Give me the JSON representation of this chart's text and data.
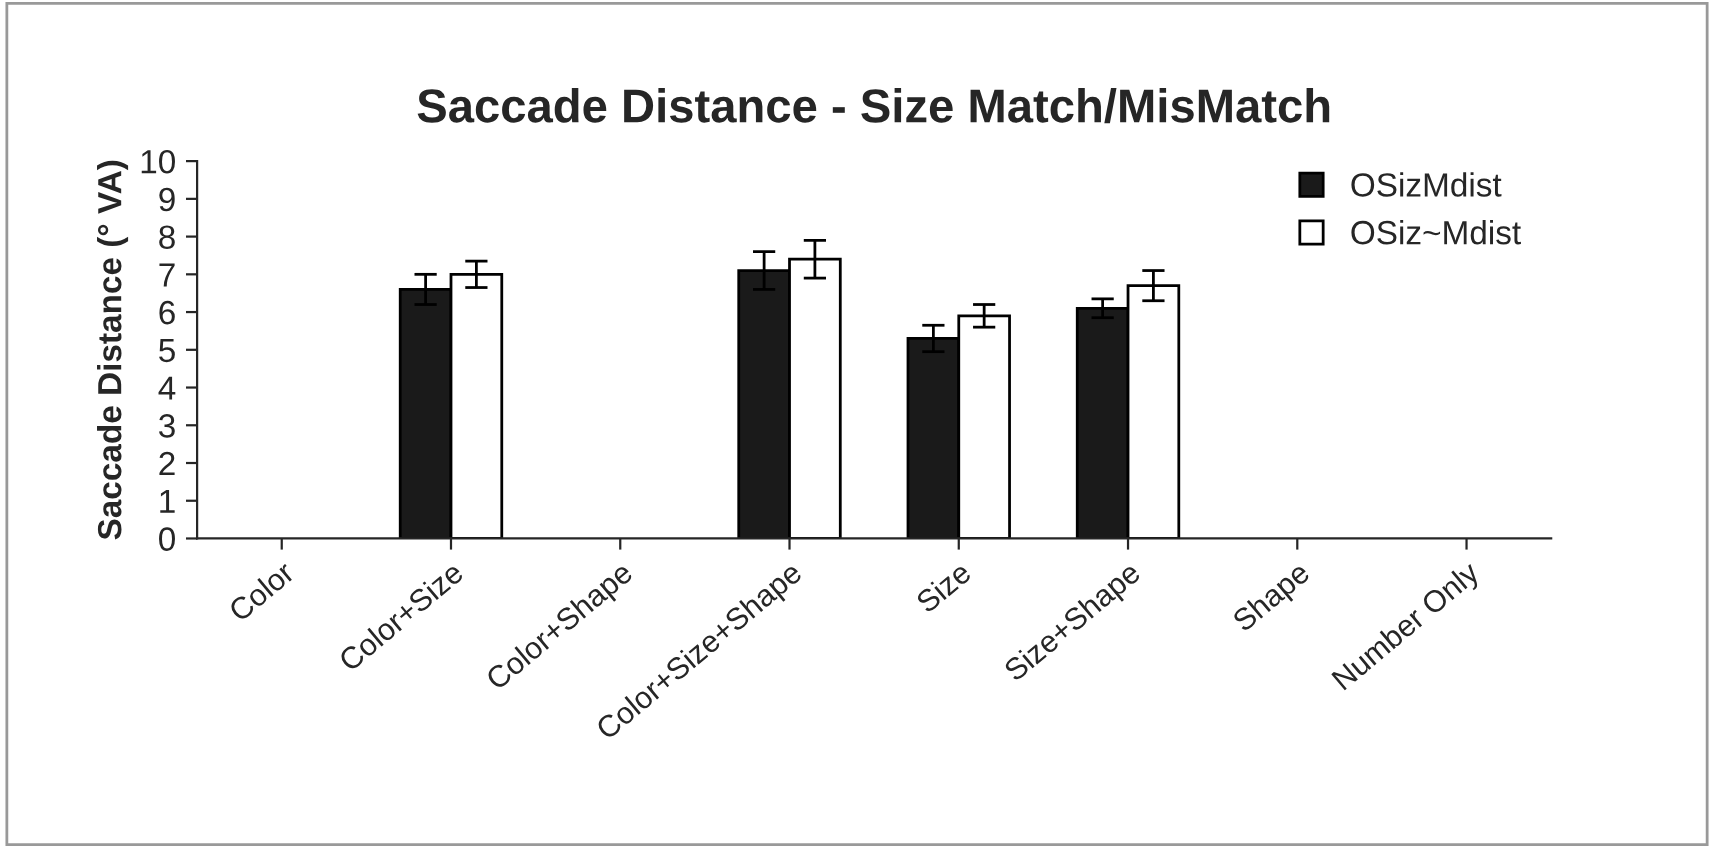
{
  "chart_data": {
    "type": "bar",
    "title": "Saccade Distance - Size Match/MisMatch",
    "ylabel": "Saccade Distance (° VA)",
    "categories": [
      "Color",
      "Color+Size",
      "Color+Shape",
      "Color+Size+Shape",
      "Size",
      "Size+Shape",
      "Shape",
      "Number Only"
    ],
    "series": [
      {
        "name": "OSizMdist",
        "color": "#1a1a1a",
        "values": [
          null,
          6.6,
          null,
          7.1,
          5.3,
          6.1,
          null,
          null
        ],
        "errors": [
          null,
          0.4,
          null,
          0.5,
          0.35,
          0.25,
          null,
          null
        ]
      },
      {
        "name": "OSiz~Mdist",
        "color": "#ffffff",
        "values": [
          null,
          7.0,
          null,
          7.4,
          5.9,
          6.7,
          null,
          null
        ],
        "errors": [
          null,
          0.35,
          null,
          0.5,
          0.3,
          0.4,
          null,
          null
        ]
      }
    ],
    "ylim": [
      0,
      10
    ],
    "yticks": [
      0,
      1,
      2,
      3,
      4,
      5,
      6,
      7,
      8,
      9,
      10
    ],
    "grid": false,
    "legend": "top right"
  }
}
